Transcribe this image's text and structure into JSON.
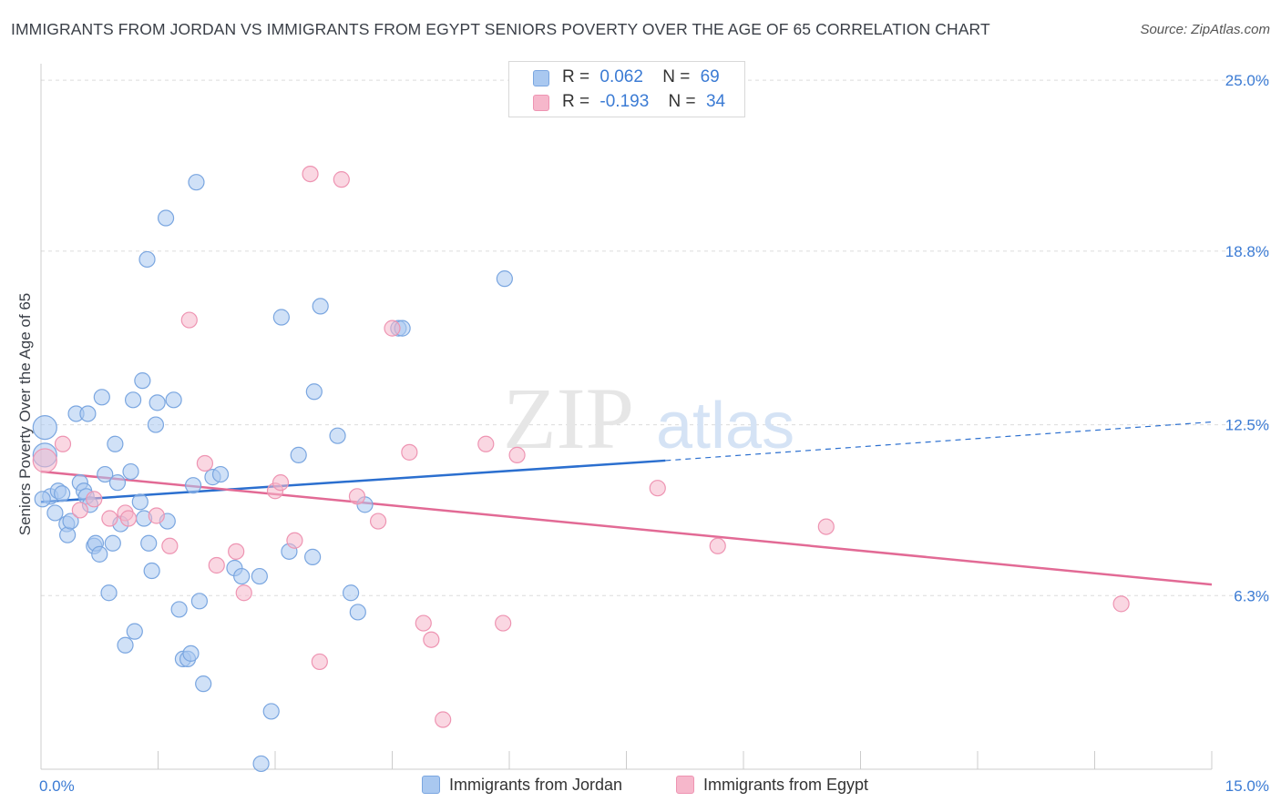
{
  "title": "IMMIGRANTS FROM JORDAN VS IMMIGRANTS FROM EGYPT SENIORS POVERTY OVER THE AGE OF 65 CORRELATION CHART",
  "source": "Source: ZipAtlas.com",
  "watermark": {
    "zip": "ZIP",
    "atlas": "atlas"
  },
  "legend_top": [
    {
      "r_label": "R =",
      "r_value": "0.062",
      "n_label": "N =",
      "n_value": "69"
    },
    {
      "r_label": "R =",
      "r_value": "-0.193",
      "n_label": "N =",
      "n_value": "34"
    }
  ],
  "legend_bottom": [
    "Immigrants from Jordan",
    "Immigrants from Egypt"
  ],
  "colors": {
    "jordan_fill": "#a9c8f0",
    "jordan_stroke": "#7aa6e0",
    "jordan_line": "#2b6fcf",
    "egypt_fill": "#f6b7cb",
    "egypt_stroke": "#ee94b2",
    "egypt_line": "#e26a95",
    "axis_text": "#3b7bd4",
    "grid": "#dcdcdc"
  },
  "chart_data": {
    "type": "scatter",
    "title": "IMMIGRANTS FROM JORDAN VS IMMIGRANTS FROM EGYPT SENIORS POVERTY OVER THE AGE OF 65 CORRELATION CHART",
    "xlabel": "",
    "ylabel": "Seniors Poverty Over the Age of 65",
    "xlim": [
      0,
      15
    ],
    "ylim": [
      0,
      25.6
    ],
    "x_tick_labels": [
      {
        "value": 0,
        "label": "0.0%"
      },
      {
        "value": 15,
        "label": "15.0%"
      }
    ],
    "y_tick_labels": [
      {
        "value": 25.0,
        "label": "25.0%"
      },
      {
        "value": 18.8,
        "label": "18.8%"
      },
      {
        "value": 12.5,
        "label": "12.5%"
      },
      {
        "value": 6.3,
        "label": "6.3%"
      }
    ],
    "grid": true,
    "legend_position": "top-center",
    "series": [
      {
        "name": "Immigrants from Jordan",
        "points": [
          [
            0.05,
            12.4
          ],
          [
            0.05,
            11.4
          ],
          [
            0.12,
            9.9
          ],
          [
            0.18,
            9.3
          ],
          [
            0.22,
            10.1
          ],
          [
            0.27,
            10.0
          ],
          [
            0.33,
            8.9
          ],
          [
            0.34,
            8.5
          ],
          [
            0.38,
            9.0
          ],
          [
            0.45,
            12.9
          ],
          [
            0.5,
            10.4
          ],
          [
            0.55,
            10.1
          ],
          [
            0.58,
            9.9
          ],
          [
            0.6,
            12.9
          ],
          [
            0.63,
            9.6
          ],
          [
            0.68,
            8.1
          ],
          [
            0.7,
            8.2
          ],
          [
            0.75,
            7.8
          ],
          [
            0.78,
            13.5
          ],
          [
            0.82,
            10.7
          ],
          [
            0.87,
            6.4
          ],
          [
            0.92,
            8.2
          ],
          [
            0.95,
            11.8
          ],
          [
            0.98,
            10.4
          ],
          [
            1.02,
            8.9
          ],
          [
            1.08,
            4.5
          ],
          [
            1.15,
            10.8
          ],
          [
            1.18,
            13.4
          ],
          [
            1.2,
            5.0
          ],
          [
            1.27,
            9.7
          ],
          [
            1.3,
            14.1
          ],
          [
            1.32,
            9.1
          ],
          [
            1.36,
            18.5
          ],
          [
            1.38,
            8.2
          ],
          [
            1.42,
            7.2
          ],
          [
            1.47,
            12.5
          ],
          [
            1.49,
            13.3
          ],
          [
            1.6,
            20.0
          ],
          [
            1.62,
            9.0
          ],
          [
            1.7,
            13.4
          ],
          [
            1.77,
            5.8
          ],
          [
            1.82,
            4.0
          ],
          [
            1.88,
            4.0
          ],
          [
            1.92,
            4.2
          ],
          [
            1.95,
            10.3
          ],
          [
            1.99,
            21.3
          ],
          [
            2.03,
            6.1
          ],
          [
            2.08,
            3.1
          ],
          [
            2.2,
            10.6
          ],
          [
            2.3,
            10.7
          ],
          [
            2.48,
            7.3
          ],
          [
            2.57,
            7.0
          ],
          [
            2.8,
            7.0
          ],
          [
            2.82,
            0.2
          ],
          [
            2.95,
            2.1
          ],
          [
            3.08,
            16.4
          ],
          [
            3.18,
            7.9
          ],
          [
            3.3,
            11.4
          ],
          [
            3.48,
            7.7
          ],
          [
            3.5,
            13.7
          ],
          [
            3.58,
            16.8
          ],
          [
            3.8,
            12.1
          ],
          [
            3.97,
            6.4
          ],
          [
            4.06,
            5.7
          ],
          [
            4.15,
            9.6
          ],
          [
            4.58,
            16.0
          ],
          [
            4.63,
            16.0
          ],
          [
            5.94,
            17.8
          ],
          [
            0.02,
            9.8
          ]
        ]
      },
      {
        "name": "Immigrants from Egypt",
        "points": [
          [
            0.05,
            11.2
          ],
          [
            0.28,
            11.8
          ],
          [
            0.5,
            9.4
          ],
          [
            0.68,
            9.8
          ],
          [
            0.88,
            9.1
          ],
          [
            1.08,
            9.3
          ],
          [
            1.12,
            9.1
          ],
          [
            1.48,
            9.2
          ],
          [
            1.65,
            8.1
          ],
          [
            1.9,
            16.3
          ],
          [
            2.1,
            11.1
          ],
          [
            2.25,
            7.4
          ],
          [
            2.5,
            7.9
          ],
          [
            2.6,
            6.4
          ],
          [
            3.0,
            10.1
          ],
          [
            3.07,
            10.4
          ],
          [
            3.25,
            8.3
          ],
          [
            3.45,
            21.6
          ],
          [
            3.57,
            3.9
          ],
          [
            3.85,
            21.4
          ],
          [
            4.05,
            9.9
          ],
          [
            4.32,
            9.0
          ],
          [
            4.5,
            16.0
          ],
          [
            4.72,
            11.5
          ],
          [
            4.9,
            5.3
          ],
          [
            5.0,
            4.7
          ],
          [
            5.15,
            1.8
          ],
          [
            5.7,
            11.8
          ],
          [
            5.92,
            5.3
          ],
          [
            6.1,
            11.4
          ],
          [
            7.9,
            10.2
          ],
          [
            8.67,
            8.1
          ],
          [
            10.06,
            8.8
          ],
          [
            13.84,
            6.0
          ]
        ]
      }
    ],
    "trend_lines": [
      {
        "series": "Immigrants from Jordan",
        "x0": 0,
        "y0": 9.7,
        "x_solid_end": 8.0,
        "y_solid_end": 11.2,
        "x1": 15,
        "y1": 12.6
      },
      {
        "series": "Immigrants from Egypt",
        "x0": 0,
        "y0": 10.8,
        "x1": 15,
        "y1": 6.7
      }
    ]
  }
}
